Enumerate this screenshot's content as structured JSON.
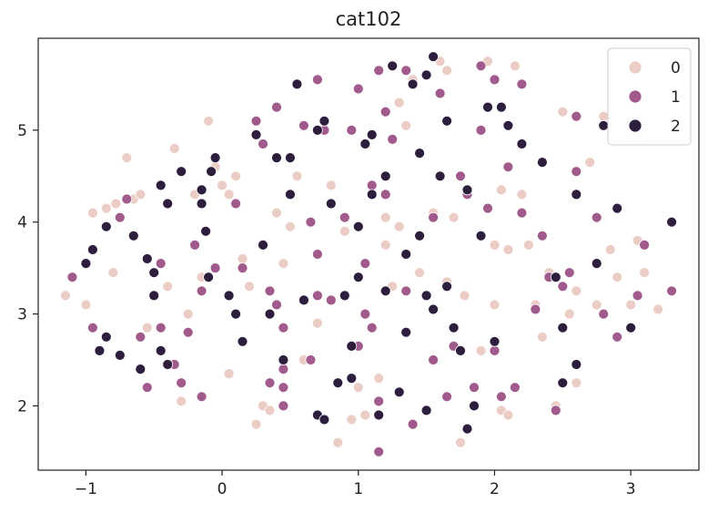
{
  "chart_data": {
    "type": "scatter",
    "title": "cat102",
    "xlabel": "",
    "ylabel": "",
    "xlim": [
      -1.35,
      3.5
    ],
    "ylim": [
      1.3,
      6.0
    ],
    "xticks": [
      -1,
      0,
      1,
      2,
      3
    ],
    "xtick_labels": [
      "−1",
      "0",
      "1",
      "2",
      "3"
    ],
    "yticks": [
      2,
      3,
      4,
      5
    ],
    "ytick_labels": [
      "2",
      "3",
      "4",
      "5"
    ],
    "grid": false,
    "legend": {
      "placement": "top-right",
      "title": ""
    },
    "series": [
      {
        "name": "0",
        "color": "#ebcdc5",
        "points": [
          [
            -1.15,
            3.2
          ],
          [
            -1.0,
            3.1
          ],
          [
            -0.95,
            4.1
          ],
          [
            -0.85,
            4.15
          ],
          [
            -0.8,
            3.45
          ],
          [
            -0.78,
            4.2
          ],
          [
            -0.7,
            4.7
          ],
          [
            -0.65,
            4.25
          ],
          [
            -0.6,
            4.3
          ],
          [
            -0.55,
            2.85
          ],
          [
            -0.4,
            3.3
          ],
          [
            -0.3,
            2.05
          ],
          [
            -0.35,
            4.8
          ],
          [
            -0.25,
            3.0
          ],
          [
            -0.2,
            4.3
          ],
          [
            -0.15,
            3.4
          ],
          [
            -0.1,
            5.1
          ],
          [
            -0.05,
            4.6
          ],
          [
            0.0,
            4.4
          ],
          [
            0.05,
            4.3
          ],
          [
            0.1,
            4.5
          ],
          [
            0.15,
            3.6
          ],
          [
            0.05,
            2.35
          ],
          [
            0.25,
            1.8
          ],
          [
            0.3,
            2.0
          ],
          [
            0.35,
            1.95
          ],
          [
            0.45,
            3.55
          ],
          [
            0.5,
            3.95
          ],
          [
            0.55,
            4.5
          ],
          [
            0.6,
            2.5
          ],
          [
            0.7,
            2.9
          ],
          [
            0.8,
            4.4
          ],
          [
            0.85,
            1.6
          ],
          [
            0.9,
            3.9
          ],
          [
            0.95,
            1.85
          ],
          [
            1.0,
            2.2
          ],
          [
            1.05,
            1.9
          ],
          [
            1.15,
            2.3
          ],
          [
            1.2,
            3.75
          ],
          [
            1.2,
            4.05
          ],
          [
            1.25,
            3.3
          ],
          [
            1.3,
            5.3
          ],
          [
            1.35,
            5.05
          ],
          [
            1.4,
            5.55
          ],
          [
            1.45,
            3.45
          ],
          [
            1.55,
            4.1
          ],
          [
            1.6,
            5.75
          ],
          [
            1.65,
            5.65
          ],
          [
            1.65,
            3.35
          ],
          [
            1.7,
            4.05
          ],
          [
            1.75,
            1.6
          ],
          [
            1.78,
            3.2
          ],
          [
            1.85,
            2.2
          ],
          [
            1.9,
            2.6
          ],
          [
            1.95,
            5.75
          ],
          [
            2.0,
            3.75
          ],
          [
            2.0,
            3.1
          ],
          [
            2.05,
            1.95
          ],
          [
            2.1,
            3.7
          ],
          [
            2.1,
            1.9
          ],
          [
            2.15,
            5.7
          ],
          [
            2.2,
            4.3
          ],
          [
            2.25,
            3.75
          ],
          [
            2.3,
            3.1
          ],
          [
            2.35,
            2.75
          ],
          [
            2.4,
            3.45
          ],
          [
            2.45,
            2.0
          ],
          [
            2.5,
            5.2
          ],
          [
            2.55,
            3.0
          ],
          [
            2.6,
            3.25
          ],
          [
            2.6,
            2.25
          ],
          [
            2.7,
            4.65
          ],
          [
            2.75,
            3.1
          ],
          [
            2.8,
            5.15
          ],
          [
            2.85,
            3.7
          ],
          [
            2.9,
            3.4
          ],
          [
            3.0,
            3.1
          ],
          [
            3.05,
            3.8
          ],
          [
            3.1,
            3.45
          ],
          [
            3.2,
            3.05
          ],
          [
            2.05,
            4.35
          ],
          [
            1.3,
            3.95
          ],
          [
            0.4,
            4.1
          ],
          [
            0.2,
            3.3
          ]
        ]
      },
      {
        "name": "1",
        "color": "#a15a8c",
        "points": [
          [
            -1.1,
            3.4
          ],
          [
            -0.95,
            2.85
          ],
          [
            -0.75,
            4.05
          ],
          [
            -0.7,
            4.25
          ],
          [
            -0.6,
            2.75
          ],
          [
            -0.55,
            2.2
          ],
          [
            -0.45,
            3.55
          ],
          [
            -0.45,
            2.85
          ],
          [
            -0.35,
            2.45
          ],
          [
            -0.3,
            2.25
          ],
          [
            -0.25,
            2.8
          ],
          [
            -0.2,
            3.75
          ],
          [
            -0.15,
            2.1
          ],
          [
            -0.15,
            3.25
          ],
          [
            -0.05,
            3.5
          ],
          [
            0.1,
            4.2
          ],
          [
            0.15,
            3.5
          ],
          [
            0.25,
            5.1
          ],
          [
            0.3,
            4.85
          ],
          [
            0.35,
            3.25
          ],
          [
            0.35,
            2.25
          ],
          [
            0.4,
            5.25
          ],
          [
            0.4,
            3.1
          ],
          [
            0.45,
            2.4
          ],
          [
            0.45,
            2.2
          ],
          [
            0.45,
            2.85
          ],
          [
            0.45,
            2.0
          ],
          [
            0.6,
            5.05
          ],
          [
            0.65,
            2.5
          ],
          [
            0.65,
            4.0
          ],
          [
            0.7,
            5.55
          ],
          [
            0.7,
            3.2
          ],
          [
            0.7,
            3.65
          ],
          [
            0.75,
            5.0
          ],
          [
            0.8,
            3.15
          ],
          [
            0.9,
            4.05
          ],
          [
            0.95,
            5.0
          ],
          [
            1.0,
            2.65
          ],
          [
            1.0,
            5.45
          ],
          [
            1.05,
            3.55
          ],
          [
            1.1,
            4.4
          ],
          [
            1.1,
            2.85
          ],
          [
            1.15,
            1.5
          ],
          [
            1.15,
            2.05
          ],
          [
            1.15,
            5.65
          ],
          [
            1.2,
            4.3
          ],
          [
            1.2,
            5.2
          ],
          [
            1.25,
            4.9
          ],
          [
            1.35,
            5.65
          ],
          [
            1.35,
            3.25
          ],
          [
            1.4,
            1.8
          ],
          [
            1.55,
            4.05
          ],
          [
            1.55,
            2.5
          ],
          [
            1.6,
            5.4
          ],
          [
            1.65,
            2.1
          ],
          [
            1.7,
            2.65
          ],
          [
            1.75,
            4.5
          ],
          [
            1.8,
            4.3
          ],
          [
            1.85,
            2.2
          ],
          [
            1.9,
            5.7
          ],
          [
            1.9,
            5.0
          ],
          [
            1.95,
            4.15
          ],
          [
            2.0,
            5.55
          ],
          [
            2.05,
            2.1
          ],
          [
            2.1,
            4.6
          ],
          [
            2.15,
            2.2
          ],
          [
            2.2,
            5.5
          ],
          [
            2.2,
            4.1
          ],
          [
            2.3,
            3.05
          ],
          [
            2.35,
            3.85
          ],
          [
            2.4,
            3.4
          ],
          [
            2.45,
            1.95
          ],
          [
            2.5,
            3.3
          ],
          [
            2.55,
            3.45
          ],
          [
            2.6,
            4.55
          ],
          [
            2.6,
            5.15
          ],
          [
            2.75,
            4.05
          ],
          [
            2.8,
            3.0
          ],
          [
            2.9,
            2.75
          ],
          [
            3.05,
            3.2
          ],
          [
            3.1,
            3.75
          ],
          [
            3.3,
            3.25
          ],
          [
            1.05,
            3.0
          ],
          [
            2.0,
            2.6
          ]
        ]
      },
      {
        "name": "2",
        "color": "#2d1e3e",
        "points": [
          [
            -1.0,
            3.55
          ],
          [
            -0.95,
            3.7
          ],
          [
            -0.9,
            2.6
          ],
          [
            -0.85,
            2.75
          ],
          [
            -0.85,
            3.95
          ],
          [
            -0.75,
            2.55
          ],
          [
            -0.65,
            3.85
          ],
          [
            -0.6,
            2.4
          ],
          [
            -0.55,
            3.6
          ],
          [
            -0.5,
            3.2
          ],
          [
            -0.5,
            3.45
          ],
          [
            -0.45,
            2.6
          ],
          [
            -0.45,
            4.4
          ],
          [
            -0.4,
            2.45
          ],
          [
            -0.4,
            4.2
          ],
          [
            -0.3,
            4.55
          ],
          [
            -0.15,
            4.35
          ],
          [
            -0.15,
            4.2
          ],
          [
            -0.12,
            3.9
          ],
          [
            -0.1,
            3.4
          ],
          [
            -0.08,
            4.55
          ],
          [
            -0.05,
            4.7
          ],
          [
            0.05,
            3.2
          ],
          [
            0.1,
            3.0
          ],
          [
            0.15,
            2.7
          ],
          [
            0.25,
            4.95
          ],
          [
            0.3,
            3.75
          ],
          [
            0.35,
            3.0
          ],
          [
            0.4,
            4.7
          ],
          [
            0.45,
            2.5
          ],
          [
            0.5,
            4.3
          ],
          [
            0.5,
            4.7
          ],
          [
            0.55,
            5.5
          ],
          [
            0.6,
            3.15
          ],
          [
            0.7,
            1.9
          ],
          [
            0.7,
            5.0
          ],
          [
            0.75,
            1.85
          ],
          [
            0.75,
            5.1
          ],
          [
            0.8,
            4.2
          ],
          [
            0.85,
            2.25
          ],
          [
            0.9,
            3.2
          ],
          [
            0.95,
            2.65
          ],
          [
            0.95,
            2.3
          ],
          [
            1.0,
            3.4
          ],
          [
            1.0,
            3.95
          ],
          [
            1.05,
            4.85
          ],
          [
            1.1,
            4.3
          ],
          [
            1.1,
            4.95
          ],
          [
            1.15,
            1.9
          ],
          [
            1.2,
            3.25
          ],
          [
            1.2,
            4.5
          ],
          [
            1.25,
            5.7
          ],
          [
            1.3,
            2.15
          ],
          [
            1.35,
            2.8
          ],
          [
            1.35,
            3.65
          ],
          [
            1.4,
            5.5
          ],
          [
            1.45,
            3.85
          ],
          [
            1.45,
            4.75
          ],
          [
            1.5,
            1.95
          ],
          [
            1.5,
            5.6
          ],
          [
            1.5,
            3.2
          ],
          [
            1.55,
            3.05
          ],
          [
            1.55,
            5.8
          ],
          [
            1.6,
            4.5
          ],
          [
            1.65,
            3.3
          ],
          [
            1.65,
            5.1
          ],
          [
            1.7,
            2.85
          ],
          [
            1.75,
            2.6
          ],
          [
            1.8,
            4.35
          ],
          [
            1.8,
            1.75
          ],
          [
            1.85,
            2.0
          ],
          [
            1.9,
            3.85
          ],
          [
            1.95,
            5.25
          ],
          [
            2.0,
            2.7
          ],
          [
            2.05,
            5.25
          ],
          [
            2.1,
            5.05
          ],
          [
            2.2,
            4.85
          ],
          [
            2.35,
            4.65
          ],
          [
            2.45,
            3.4
          ],
          [
            2.5,
            2.85
          ],
          [
            2.5,
            2.25
          ],
          [
            2.6,
            2.45
          ],
          [
            2.6,
            4.3
          ],
          [
            2.75,
            3.55
          ],
          [
            2.8,
            5.05
          ],
          [
            2.9,
            4.15
          ],
          [
            3.0,
            2.85
          ],
          [
            3.3,
            4.0
          ]
        ]
      }
    ]
  }
}
